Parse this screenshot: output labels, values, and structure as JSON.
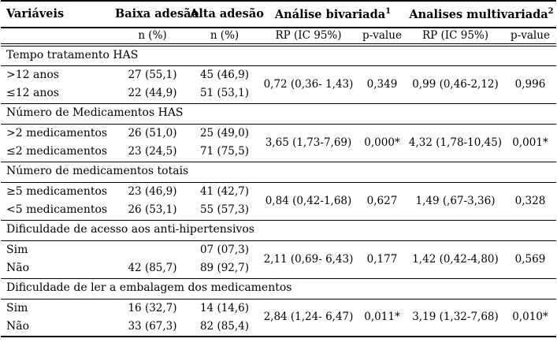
{
  "table": {
    "header": {
      "col_variaveis": "Variáveis",
      "col_baixa": "Baixa adesão",
      "col_alta": "Alta adesão",
      "group_bivariada": {
        "label": "Análise bivariada",
        "sup": "1"
      },
      "group_multivariada": {
        "label": "Analises multivariada",
        "sup": "2"
      },
      "sub_n_baixa": "n (%)",
      "sub_n_alta": "n (%)",
      "sub_rp_biv": "RP (IC 95%)",
      "sub_p_biv": "p-value",
      "sub_rp_multi": "RP (IC 95%)",
      "sub_p_multi": "p-value"
    },
    "sections": [
      {
        "title": "Tempo tratamento HAS",
        "rows": [
          {
            "label": ">12 anos",
            "baixa": "27 (55,1)",
            "alta": "45 (46,9)"
          },
          {
            "label": "≤12 anos",
            "baixa": "22 (44,9)",
            "alta": "51 (53,1)"
          }
        ],
        "stats": {
          "rp_biv": "0,72 (0,36- 1,43)",
          "p_biv": "0,349",
          "rp_multi": "0,99 (0,46-2,12)",
          "p_multi": "0,996"
        }
      },
      {
        "title": "Número de Medicamentos HAS",
        "rows": [
          {
            "label": ">2 medicamentos",
            "baixa": "26 (51,0)",
            "alta": "25 (49,0)"
          },
          {
            "label": "≤2 medicamentos",
            "baixa": "23 (24,5)",
            "alta": "71 (75,5)"
          }
        ],
        "stats": {
          "rp_biv": "3,65 (1,73-7,69)",
          "p_biv": "0,000*",
          "rp_multi": "4,32 (1,78-10,45)",
          "p_multi": "0,001*"
        }
      },
      {
        "title": "Número de medicamentos totais",
        "rows": [
          {
            "label": "≥5 medicamentos",
            "baixa": "23 (46,9)",
            "alta": "41 (42,7)"
          },
          {
            "label": "<5 medicamentos",
            "baixa": "26 (53,1)",
            "alta": "55 (57,3)"
          }
        ],
        "stats": {
          "rp_biv": "0,84 (0,42-1,68)",
          "p_biv": "0,627",
          "rp_multi": "1,49 (,67-3,36)",
          "p_multi": "0,328"
        }
      },
      {
        "title": "Dificuldade de acesso aos anti-hipertensivos",
        "rows": [
          {
            "label": "Sim",
            "baixa": "",
            "alta": "07 (07,3)"
          },
          {
            "label": "Não",
            "baixa": "42 (85,7)",
            "alta": "89 (92,7)"
          }
        ],
        "stats": {
          "rp_biv": "2,11 (0,69- 6,43)",
          "p_biv": "0,177",
          "rp_multi": "1,42 (0,42-4,80)",
          "p_multi": "0,569"
        }
      },
      {
        "title": "Dificuldade de ler a embalagem dos medicamentos",
        "rows": [
          {
            "label": "Sim",
            "baixa": "16 (32,7)",
            "alta": "14 (14,6)"
          },
          {
            "label": "Não",
            "baixa": "33 (67,3)",
            "alta": "82 (85,4)"
          }
        ],
        "stats": {
          "rp_biv": "2,84 (1,24- 6,47)",
          "p_biv": "0,011*",
          "rp_multi": "3,19 (1,32-7,68)",
          "p_multi": "0,010*"
        }
      }
    ]
  }
}
